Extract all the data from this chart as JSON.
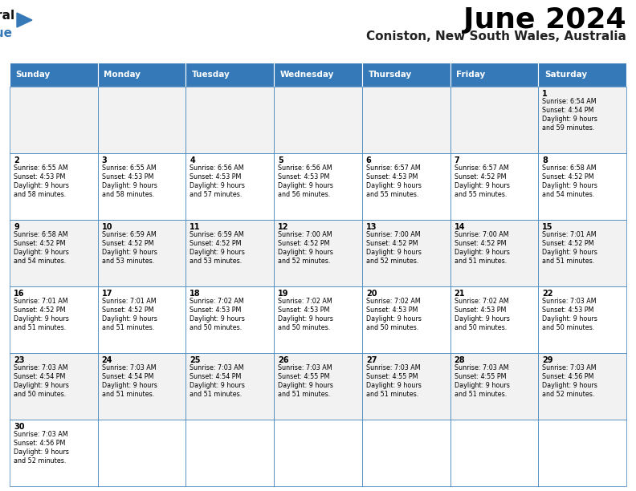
{
  "title": "June 2024",
  "subtitle": "Coniston, New South Wales, Australia",
  "header_bg": "#3579B8",
  "header_text_color": "#FFFFFF",
  "cell_bg_odd": "#F2F2F2",
  "cell_bg_even": "#FFFFFF",
  "border_color": "#3579B8",
  "days_of_week": [
    "Sunday",
    "Monday",
    "Tuesday",
    "Wednesday",
    "Thursday",
    "Friday",
    "Saturday"
  ],
  "calendar_data": [
    [
      null,
      null,
      null,
      null,
      null,
      null,
      {
        "day": 1,
        "sunrise": "6:54 AM",
        "sunset": "4:54 PM",
        "daylight": "9 hours and 59 minutes."
      }
    ],
    [
      {
        "day": 2,
        "sunrise": "6:55 AM",
        "sunset": "4:53 PM",
        "daylight": "9 hours and 58 minutes."
      },
      {
        "day": 3,
        "sunrise": "6:55 AM",
        "sunset": "4:53 PM",
        "daylight": "9 hours and 58 minutes."
      },
      {
        "day": 4,
        "sunrise": "6:56 AM",
        "sunset": "4:53 PM",
        "daylight": "9 hours and 57 minutes."
      },
      {
        "day": 5,
        "sunrise": "6:56 AM",
        "sunset": "4:53 PM",
        "daylight": "9 hours and 56 minutes."
      },
      {
        "day": 6,
        "sunrise": "6:57 AM",
        "sunset": "4:53 PM",
        "daylight": "9 hours and 55 minutes."
      },
      {
        "day": 7,
        "sunrise": "6:57 AM",
        "sunset": "4:52 PM",
        "daylight": "9 hours and 55 minutes."
      },
      {
        "day": 8,
        "sunrise": "6:58 AM",
        "sunset": "4:52 PM",
        "daylight": "9 hours and 54 minutes."
      }
    ],
    [
      {
        "day": 9,
        "sunrise": "6:58 AM",
        "sunset": "4:52 PM",
        "daylight": "9 hours and 54 minutes."
      },
      {
        "day": 10,
        "sunrise": "6:59 AM",
        "sunset": "4:52 PM",
        "daylight": "9 hours and 53 minutes."
      },
      {
        "day": 11,
        "sunrise": "6:59 AM",
        "sunset": "4:52 PM",
        "daylight": "9 hours and 53 minutes."
      },
      {
        "day": 12,
        "sunrise": "7:00 AM",
        "sunset": "4:52 PM",
        "daylight": "9 hours and 52 minutes."
      },
      {
        "day": 13,
        "sunrise": "7:00 AM",
        "sunset": "4:52 PM",
        "daylight": "9 hours and 52 minutes."
      },
      {
        "day": 14,
        "sunrise": "7:00 AM",
        "sunset": "4:52 PM",
        "daylight": "9 hours and 51 minutes."
      },
      {
        "day": 15,
        "sunrise": "7:01 AM",
        "sunset": "4:52 PM",
        "daylight": "9 hours and 51 minutes."
      }
    ],
    [
      {
        "day": 16,
        "sunrise": "7:01 AM",
        "sunset": "4:52 PM",
        "daylight": "9 hours and 51 minutes."
      },
      {
        "day": 17,
        "sunrise": "7:01 AM",
        "sunset": "4:52 PM",
        "daylight": "9 hours and 51 minutes."
      },
      {
        "day": 18,
        "sunrise": "7:02 AM",
        "sunset": "4:53 PM",
        "daylight": "9 hours and 50 minutes."
      },
      {
        "day": 19,
        "sunrise": "7:02 AM",
        "sunset": "4:53 PM",
        "daylight": "9 hours and 50 minutes."
      },
      {
        "day": 20,
        "sunrise": "7:02 AM",
        "sunset": "4:53 PM",
        "daylight": "9 hours and 50 minutes."
      },
      {
        "day": 21,
        "sunrise": "7:02 AM",
        "sunset": "4:53 PM",
        "daylight": "9 hours and 50 minutes."
      },
      {
        "day": 22,
        "sunrise": "7:03 AM",
        "sunset": "4:53 PM",
        "daylight": "9 hours and 50 minutes."
      }
    ],
    [
      {
        "day": 23,
        "sunrise": "7:03 AM",
        "sunset": "4:54 PM",
        "daylight": "9 hours and 50 minutes."
      },
      {
        "day": 24,
        "sunrise": "7:03 AM",
        "sunset": "4:54 PM",
        "daylight": "9 hours and 51 minutes."
      },
      {
        "day": 25,
        "sunrise": "7:03 AM",
        "sunset": "4:54 PM",
        "daylight": "9 hours and 51 minutes."
      },
      {
        "day": 26,
        "sunrise": "7:03 AM",
        "sunset": "4:55 PM",
        "daylight": "9 hours and 51 minutes."
      },
      {
        "day": 27,
        "sunrise": "7:03 AM",
        "sunset": "4:55 PM",
        "daylight": "9 hours and 51 minutes."
      },
      {
        "day": 28,
        "sunrise": "7:03 AM",
        "sunset": "4:55 PM",
        "daylight": "9 hours and 51 minutes."
      },
      {
        "day": 29,
        "sunrise": "7:03 AM",
        "sunset": "4:56 PM",
        "daylight": "9 hours and 52 minutes."
      }
    ],
    [
      {
        "day": 30,
        "sunrise": "7:03 AM",
        "sunset": "4:56 PM",
        "daylight": "9 hours and 52 minutes."
      },
      null,
      null,
      null,
      null,
      null,
      null
    ]
  ],
  "fig_width": 7.92,
  "fig_height": 6.12,
  "dpi": 100
}
